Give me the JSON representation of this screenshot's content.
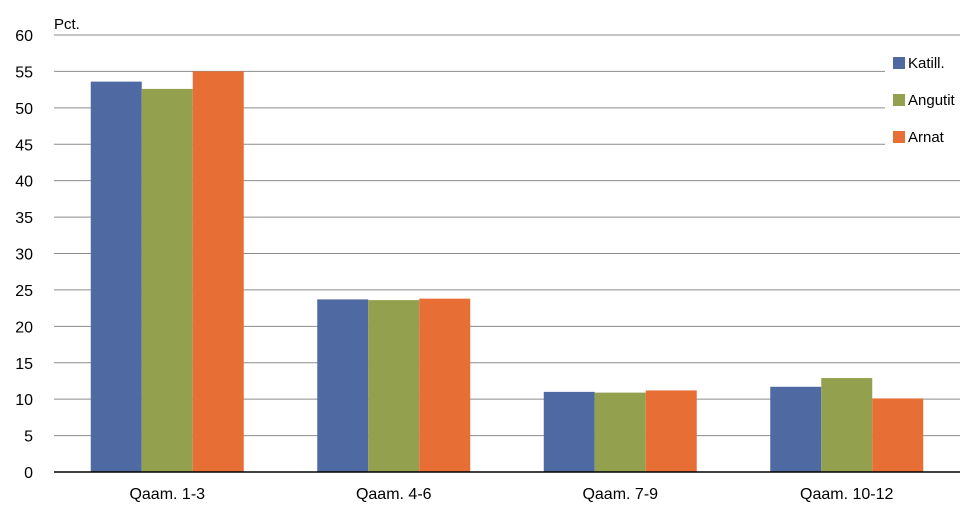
{
  "chart_data": {
    "type": "bar",
    "ylabel": "Pct.",
    "categories": [
      "Qaam. 1-3",
      "Qaam. 4-6",
      "Qaam. 7-9",
      "Qaam. 10-12"
    ],
    "series": [
      {
        "name": "Katill.",
        "color": "#4F6AA3",
        "values": [
          53.6,
          23.7,
          11.0,
          11.7
        ]
      },
      {
        "name": "Angutit",
        "color": "#93A04E",
        "values": [
          52.6,
          23.6,
          10.9,
          12.9
        ]
      },
      {
        "name": "Arnat",
        "color": "#E76F36",
        "values": [
          55.0,
          23.8,
          11.2,
          10.1
        ]
      }
    ],
    "ylim": [
      0,
      60
    ],
    "yticks": [
      0,
      5,
      10,
      15,
      20,
      25,
      30,
      35,
      40,
      45,
      50,
      55,
      60
    ],
    "grid": true,
    "legend": "right"
  }
}
